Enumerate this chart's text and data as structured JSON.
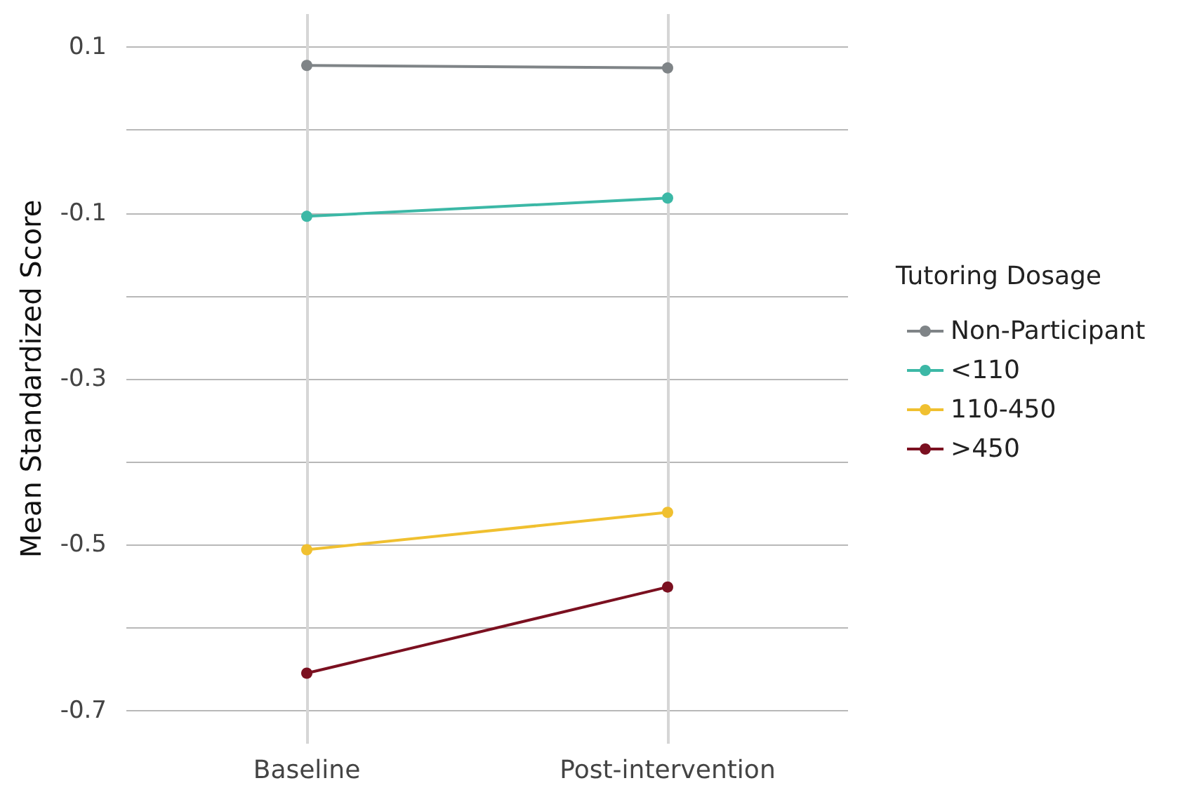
{
  "chart_data": {
    "type": "line",
    "ylabel": "Mean Standardized Score",
    "legend_title": "Tutoring Dosage",
    "categories": [
      "Baseline",
      "Post-intervention"
    ],
    "series": [
      {
        "name": "Non-Participant",
        "color": "#7f8487",
        "values": [
          0.078,
          0.075
        ]
      },
      {
        "name": "<110",
        "color": "#3cb8a6",
        "values": [
          -0.104,
          -0.082
        ]
      },
      {
        "name": "110-450",
        "color": "#f0c030",
        "values": [
          -0.506,
          -0.461
        ]
      },
      {
        "name": ">450",
        "color": "#7b1020",
        "values": [
          -0.655,
          -0.551
        ]
      }
    ],
    "ylim": [
      -0.74,
      0.14
    ],
    "yticks": [
      -0.7,
      {
        "value": -0.6,
        "label": null
      },
      -0.5,
      {
        "value": -0.4,
        "label": null
      },
      -0.3,
      {
        "value": -0.2,
        "label": null
      },
      -0.1,
      {
        "value": 0,
        "label": null
      },
      0.1
    ],
    "grid": true,
    "legend": "right",
    "marker": "circle",
    "line_style": "solid"
  }
}
